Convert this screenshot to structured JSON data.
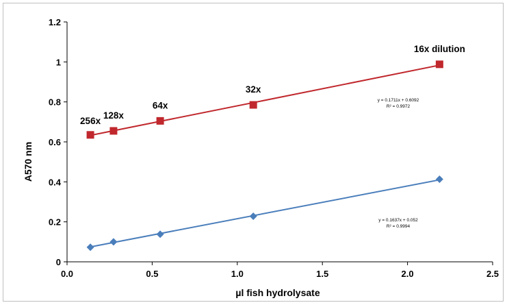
{
  "chart_data": {
    "type": "scatter",
    "title": "",
    "xlabel": "µl fish hydrolysate",
    "ylabel": "A570 nm",
    "xlim": [
      0,
      2.5
    ],
    "ylim": [
      0,
      1.2
    ],
    "xticks": [
      "0.0",
      "0.5",
      "1.0",
      "1.5",
      "2.0",
      "2.5"
    ],
    "yticks": [
      "0",
      "0.2",
      "0.4",
      "0.6",
      "0.8",
      "1",
      "1.2"
    ],
    "grid": false,
    "legend": "none",
    "series": [
      {
        "color": "#c0282d",
        "marker": "square",
        "x": [
          0.137,
          0.273,
          0.547,
          1.094,
          2.188
        ],
        "y": [
          0.635,
          0.655,
          0.705,
          0.785,
          0.988
        ],
        "point_labels": [
          "256x",
          "128x",
          "64x",
          "32x",
          "16x dilution"
        ],
        "trendline": {
          "slope": 0.1711,
          "intercept": 0.6092,
          "equation": "y = 0.1711x + 0.6092",
          "r2": "R² = 0.9972"
        }
      },
      {
        "color": "#4a7ebb",
        "marker": "diamond",
        "x": [
          0.137,
          0.273,
          0.547,
          1.094,
          2.188
        ],
        "y": [
          0.073,
          0.1,
          0.138,
          0.228,
          0.413
        ],
        "trendline": {
          "slope": 0.1637,
          "intercept": 0.052,
          "equation": "y = 0.1637x + 0.052",
          "r2": "R² = 0.9994"
        }
      }
    ]
  }
}
